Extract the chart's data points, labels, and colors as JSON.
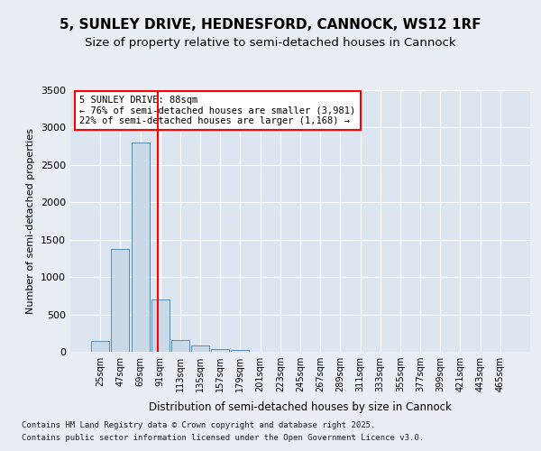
{
  "title1": "5, SUNLEY DRIVE, HEDNESFORD, CANNOCK, WS12 1RF",
  "title2": "Size of property relative to semi-detached houses in Cannock",
  "xlabel": "Distribution of semi-detached houses by size in Cannock",
  "ylabel": "Number of semi-detached properties",
  "bins": [
    "25sqm",
    "47sqm",
    "69sqm",
    "91sqm",
    "113sqm",
    "135sqm",
    "157sqm",
    "179sqm",
    "201sqm",
    "223sqm",
    "245sqm",
    "267sqm",
    "289sqm",
    "311sqm",
    "333sqm",
    "355sqm",
    "377sqm",
    "399sqm",
    "421sqm",
    "443sqm",
    "465sqm"
  ],
  "values": [
    150,
    1380,
    2800,
    700,
    155,
    90,
    40,
    30,
    0,
    0,
    0,
    0,
    0,
    0,
    0,
    0,
    0,
    0,
    0,
    0,
    0
  ],
  "bar_color": "#c9d9e8",
  "bar_edge_color": "#5a8ab0",
  "vline_x": 2.9,
  "vline_color": "red",
  "annotation_text": "5 SUNLEY DRIVE: 88sqm\n← 76% of semi-detached houses are smaller (3,981)\n22% of semi-detached houses are larger (1,168) →",
  "box_color": "white",
  "box_edge_color": "red",
  "ylim": [
    0,
    3500
  ],
  "yticks": [
    0,
    500,
    1000,
    1500,
    2000,
    2500,
    3000,
    3500
  ],
  "footnote1": "Contains HM Land Registry data © Crown copyright and database right 2025.",
  "footnote2": "Contains public sector information licensed under the Open Government Licence v3.0.",
  "bg_color": "#e8eef4",
  "plot_bg_color": "#dce6f0",
  "title1_fontsize": 11,
  "title2_fontsize": 9.5
}
